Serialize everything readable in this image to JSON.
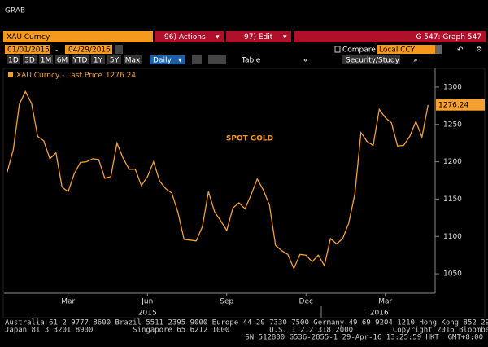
{
  "header": {
    "title": "GRAB"
  },
  "toolbar": {
    "ticker": "XAU Curncy",
    "actions": "96) Actions",
    "edit": "97) Edit",
    "graph": "G 547: Graph 547",
    "start_date": "01/01/2015",
    "date_separator": "-",
    "end_date": "04/29/2016",
    "compare": "Compare",
    "currency": "Local CCY",
    "periods": [
      "1D",
      "3D",
      "1M",
      "6M",
      "YTD",
      "1Y",
      "5Y",
      "Max"
    ],
    "frequency": "Daily",
    "table": "Table",
    "security_study": "Security/Study"
  },
  "chart_data": {
    "type": "line",
    "annotation": "SPOT GOLD",
    "categories": [
      null,
      null,
      null,
      null,
      null,
      null,
      null,
      null,
      null,
      null,
      "Mar",
      null,
      null,
      null,
      null,
      null,
      null,
      null,
      null,
      null,
      null,
      null,
      null,
      "Jun",
      null,
      null,
      null,
      null,
      null,
      null,
      null,
      null,
      null,
      null,
      null,
      null,
      "Sep",
      null,
      null,
      null,
      null,
      null,
      null,
      null,
      null,
      null,
      null,
      null,
      null,
      "Dec",
      null,
      null,
      null,
      null,
      null,
      null,
      null,
      null,
      null,
      null,
      null,
      null,
      "Mar",
      null,
      null,
      null,
      null,
      null,
      null,
      null
    ],
    "year_labels": [
      {
        "label": "2015",
        "index": 23
      },
      {
        "label": "2016",
        "index": 61
      }
    ],
    "series": [
      {
        "name": "XAU Curncy - Last Price",
        "color": "#f5a031",
        "values": [
          1186,
          1216,
          1277,
          1294,
          1278,
          1234,
          1228,
          1204,
          1212,
          1166,
          1160,
          1184,
          1199,
          1200,
          1204,
          1203,
          1178,
          1180,
          1225,
          1205,
          1190,
          1190,
          1168,
          1180,
          1200,
          1174,
          1164,
          1158,
          1132,
          1096,
          1095,
          1094,
          1113,
          1160,
          1133,
          1121,
          1108,
          1138,
          1145,
          1137,
          1156,
          1177,
          1162,
          1142,
          1088,
          1081,
          1076,
          1057,
          1076,
          1075,
          1066,
          1075,
          1061,
          1097,
          1090,
          1097,
          1118,
          1157,
          1239,
          1227,
          1222,
          1270,
          1259,
          1252,
          1221,
          1222,
          1234,
          1254,
          1233,
          1276.24
        ]
      }
    ],
    "ylim": [
      1025,
      1325
    ],
    "yticks": [
      1050,
      1100,
      1150,
      1200,
      1250,
      1300
    ],
    "grid": false
  },
  "footer": {
    "lines": [
      "Australia 61 2 9777 8600 Brazil 5511 2395 9000 Europe 44 20 7330 7500 Germany 49 69 9204 1210 Hong Kong 852 2977 6000",
      "Japan 81 3 3201 8900         Singapore 65 6212 1000         U.S. 1 212 318 2000         Copyright 2016 Bloomberg Finance L.P.",
      "SN 512800 G536-2855-1 29-Apr-16 13:25:59 HKT  GMT+8:00"
    ]
  }
}
